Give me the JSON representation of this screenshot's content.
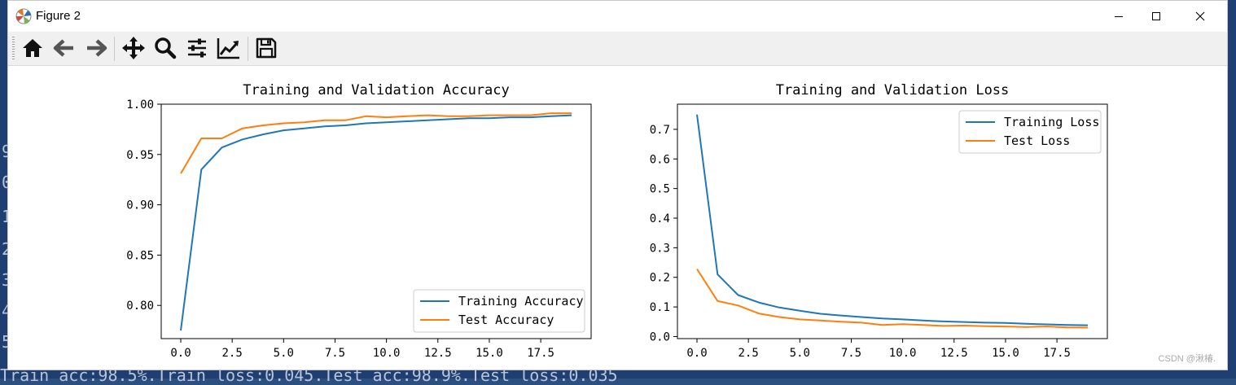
{
  "window": {
    "title": "Figure 2",
    "watermark": "CSDN @湫椿."
  },
  "toolbar": {
    "items": [
      "home-icon",
      "back-icon",
      "forward-icon",
      "pan-icon",
      "zoom-icon",
      "configure-subplots-icon",
      "edit-axis-icon",
      "save-icon"
    ]
  },
  "terminal": {
    "left_digits": [
      "9",
      "0",
      "1",
      "2",
      "3",
      "4",
      "5"
    ],
    "bottom_line": "Train acc:98.5%.Train loss:0.045.Test acc:98.9%.Test loss:0.035"
  },
  "chart_data": [
    {
      "type": "line",
      "title": "Training and Validation Accuracy",
      "xlim": [
        -0.95,
        19.95
      ],
      "ylim": [
        0.767,
        1.0
      ],
      "xticks": [
        0.0,
        2.5,
        5.0,
        7.5,
        10.0,
        12.5,
        15.0,
        17.5
      ],
      "xtick_labels": [
        "0.0",
        "2.5",
        "5.0",
        "7.5",
        "10.0",
        "12.5",
        "15.0",
        "17.5"
      ],
      "yticks": [
        0.8,
        0.85,
        0.9,
        0.95,
        1.0
      ],
      "ytick_labels": [
        "0.80",
        "0.85",
        "0.90",
        "0.95",
        "1.00"
      ],
      "legend_position": "lower-right",
      "x": [
        0,
        1,
        2,
        3,
        4,
        5,
        6,
        7,
        8,
        9,
        10,
        11,
        12,
        13,
        14,
        15,
        16,
        17,
        18,
        19
      ],
      "series": [
        {
          "name": "Training Accuracy",
          "color": "#1f77b4",
          "values": [
            0.775,
            0.935,
            0.957,
            0.965,
            0.97,
            0.974,
            0.976,
            0.978,
            0.979,
            0.981,
            0.982,
            0.983,
            0.984,
            0.985,
            0.986,
            0.986,
            0.987,
            0.987,
            0.988,
            0.989
          ]
        },
        {
          "name": "Test Accuracy",
          "color": "#ff7f0e",
          "values": [
            0.931,
            0.966,
            0.966,
            0.976,
            0.979,
            0.981,
            0.982,
            0.984,
            0.984,
            0.988,
            0.987,
            0.988,
            0.989,
            0.988,
            0.988,
            0.989,
            0.989,
            0.989,
            0.991,
            0.991
          ]
        }
      ]
    },
    {
      "type": "line",
      "title": "Training and Validation Loss",
      "xlim": [
        -0.95,
        19.95
      ],
      "ylim": [
        -0.007,
        0.785
      ],
      "xticks": [
        0.0,
        2.5,
        5.0,
        7.5,
        10.0,
        12.5,
        15.0,
        17.5
      ],
      "xtick_labels": [
        "0.0",
        "2.5",
        "5.0",
        "7.5",
        "10.0",
        "12.5",
        "15.0",
        "17.5"
      ],
      "yticks": [
        0.0,
        0.1,
        0.2,
        0.3,
        0.4,
        0.5,
        0.6,
        0.7
      ],
      "ytick_labels": [
        "0.0",
        "0.1",
        "0.2",
        "0.3",
        "0.4",
        "0.5",
        "0.6",
        "0.7"
      ],
      "legend_position": "upper-right",
      "x": [
        0,
        1,
        2,
        3,
        4,
        5,
        6,
        7,
        8,
        9,
        10,
        11,
        12,
        13,
        14,
        15,
        16,
        17,
        18,
        19
      ],
      "series": [
        {
          "name": "Training Loss",
          "color": "#1f77b4",
          "values": [
            0.75,
            0.21,
            0.14,
            0.115,
            0.098,
            0.087,
            0.077,
            0.071,
            0.066,
            0.061,
            0.058,
            0.054,
            0.051,
            0.049,
            0.047,
            0.046,
            0.043,
            0.041,
            0.039,
            0.038
          ]
        },
        {
          "name": "Test Loss",
          "color": "#ff7f0e",
          "values": [
            0.228,
            0.12,
            0.105,
            0.078,
            0.066,
            0.058,
            0.054,
            0.05,
            0.047,
            0.039,
            0.042,
            0.039,
            0.036,
            0.037,
            0.035,
            0.034,
            0.032,
            0.034,
            0.031,
            0.03
          ]
        }
      ]
    }
  ]
}
